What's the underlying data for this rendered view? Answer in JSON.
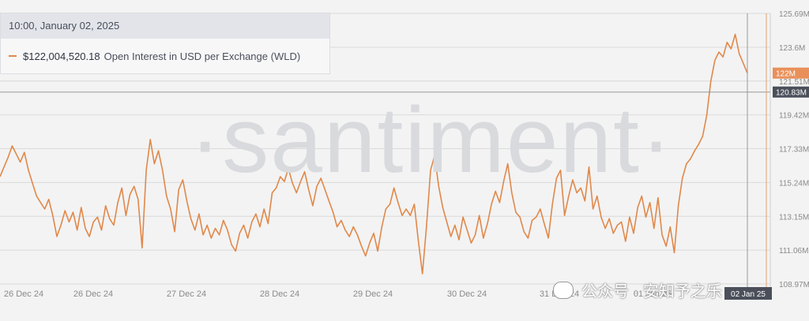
{
  "tooltip": {
    "date": "10:00, January 02, 2025",
    "value": "$122,004,520.18",
    "label": "Open Interest in USD per Exchange (WLD)"
  },
  "watermark": "·santiment·",
  "wechat_label": "公众号 · 安知予之乐",
  "colors": {
    "series": "#e0884a",
    "grid": "#dadada",
    "badge_orange": "#e9905a",
    "badge_dark": "#4a4f5a"
  },
  "chart_data": {
    "type": "line",
    "y_ticks": [
      "125.69M",
      "123.6M",
      "121.51M",
      "119.42M",
      "117.33M",
      "115.24M",
      "113.15M",
      "111.06M",
      "108.97M"
    ],
    "ylim": [
      108970000,
      125690000
    ],
    "x_ticks": [
      "26 Dec 24",
      "26 Dec 24",
      "27 Dec 24",
      "28 Dec 24",
      "29 Dec 24",
      "30 Dec 24",
      "31 Dec 24",
      "01 Jan 25",
      "02 Jan 25"
    ],
    "current_value_badge": "122M",
    "crosshair_value_badge": "120.83M",
    "crosshair_date_badge": "02 Jan 25",
    "series": [
      {
        "name": "Open Interest in USD per Exchange (WLD)",
        "values": [
          115.6,
          116.2,
          116.8,
          117.5,
          117.0,
          116.5,
          117.1,
          116.0,
          115.2,
          114.4,
          114.0,
          113.6,
          114.2,
          113.2,
          111.9,
          112.6,
          113.5,
          112.8,
          113.4,
          112.3,
          113.7,
          112.4,
          111.9,
          112.8,
          113.1,
          112.3,
          113.8,
          113.0,
          112.6,
          114.0,
          114.9,
          113.2,
          114.5,
          115.0,
          114.2,
          111.2,
          116.0,
          117.9,
          116.4,
          117.2,
          116.0,
          114.4,
          113.6,
          112.2,
          114.8,
          115.4,
          114.1,
          113.0,
          112.3,
          113.3,
          112.0,
          112.6,
          111.8,
          112.4,
          112.0,
          112.9,
          112.3,
          111.4,
          111.0,
          112.1,
          112.6,
          111.8,
          112.8,
          113.3,
          112.5,
          113.6,
          112.7,
          114.6,
          114.9,
          115.6,
          115.3,
          116.1,
          115.2,
          114.6,
          115.3,
          115.9,
          114.8,
          113.8,
          115.0,
          115.5,
          114.8,
          114.1,
          113.4,
          112.5,
          112.9,
          112.3,
          111.9,
          112.5,
          112.0,
          111.3,
          110.7,
          111.5,
          112.1,
          111.0,
          112.5,
          113.6,
          113.9,
          114.9,
          114.0,
          113.2,
          113.6,
          113.2,
          113.9,
          111.6,
          109.6,
          112.5,
          116.0,
          116.9,
          115.0,
          113.7,
          112.8,
          111.9,
          112.6,
          111.7,
          113.1,
          112.3,
          111.5,
          112.0,
          113.2,
          111.8,
          112.7,
          113.9,
          114.7,
          114.0,
          115.3,
          116.4,
          114.6,
          113.4,
          113.1,
          112.2,
          111.8,
          112.9,
          113.1,
          113.6,
          112.7,
          111.8,
          113.9,
          115.5,
          116.0,
          113.2,
          114.4,
          115.4,
          114.6,
          114.9,
          114.1,
          116.2,
          113.6,
          114.4,
          113.1,
          112.4,
          113.0,
          112.1,
          112.6,
          112.8,
          111.6,
          113.1,
          112.1,
          113.7,
          114.4,
          113.1,
          114.0,
          112.4,
          114.3,
          112.0,
          111.3,
          112.5,
          110.9,
          113.8,
          115.5,
          116.4,
          116.7,
          117.2,
          117.6,
          118.1,
          119.4,
          121.5,
          122.8,
          123.3,
          123.0,
          123.9,
          123.5,
          124.4,
          123.2,
          122.6,
          122.0
        ]
      }
    ]
  }
}
